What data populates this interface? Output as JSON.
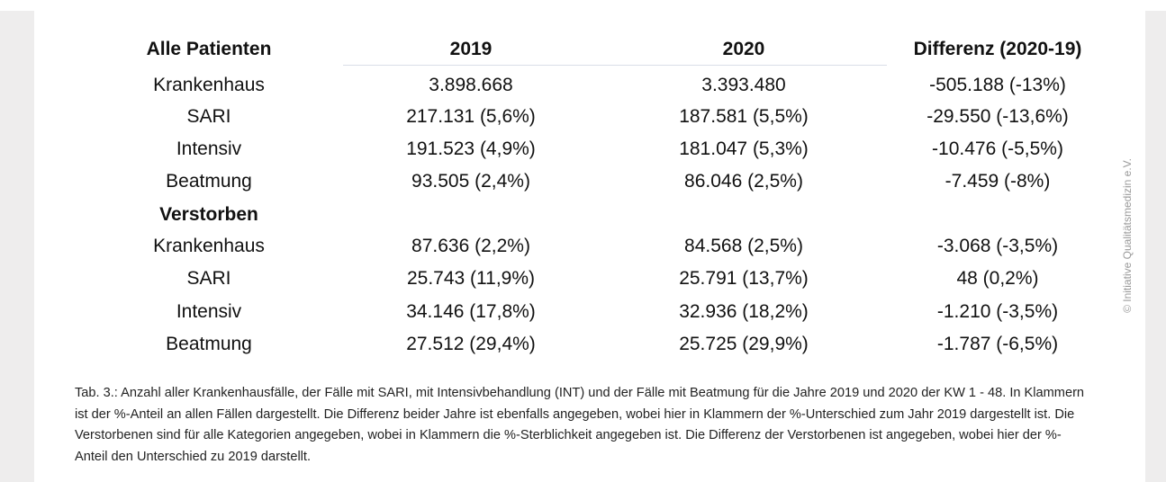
{
  "table": {
    "headers": [
      "Alle Patienten",
      "2019",
      "2020",
      "Differenz (2020-19)"
    ],
    "section_all": [
      [
        "Krankenhaus",
        "3.898.668",
        "3.393.480",
        "-505.188 (-13%)"
      ],
      [
        "SARI",
        "217.131 (5,6%)",
        "187.581 (5,5%)",
        "-29.550 (-13,6%)"
      ],
      [
        "Intensiv",
        "191.523 (4,9%)",
        "181.047 (5,3%)",
        "-10.476 (-5,5%)"
      ],
      [
        "Beatmung",
        "93.505 (2,4%)",
        "86.046 (2,5%)",
        "-7.459 (-8%)"
      ]
    ],
    "section_deceased_title": "Verstorben",
    "section_deceased": [
      [
        "Krankenhaus",
        "87.636 (2,2%)",
        "84.568 (2,5%)",
        "-3.068 (-3,5%)"
      ],
      [
        "SARI",
        "25.743 (11,9%)",
        "25.791 (13,7%)",
        "48 (0,2%)"
      ],
      [
        "Intensiv",
        "34.146 (17,8%)",
        "32.936 (18,2%)",
        "-1.210 (-3,5%)"
      ],
      [
        "Beatmung",
        "27.512 (29,4%)",
        "25.725 (29,9%)",
        "-1.787 (-6,5%)"
      ]
    ]
  },
  "caption": "Tab. 3.: Anzahl aller Krankenhausfälle, der Fälle mit SARI, mit Intensivbehandlung (INT) und der Fälle mit Beatmung für die Jahre 2019 und 2020 der KW 1 - 48. In Klammern ist der %-Anteil an allen Fällen dargestellt. Die Differenz beider Jahre ist ebenfalls angegeben, wobei hier in Klammern der %-Unterschied zum Jahr 2019 dargestellt ist. Die Verstorbenen sind für alle Kategorien angegeben, wobei in Klammern die %-Sterblichkeit angegeben ist. Die Differenz der Verstorbenen ist angegeben, wobei hier der %-Anteil den Unterschied zu 2019 darstellt.",
  "watermark": "© Initiative Qualitätsmedizin e.V."
}
